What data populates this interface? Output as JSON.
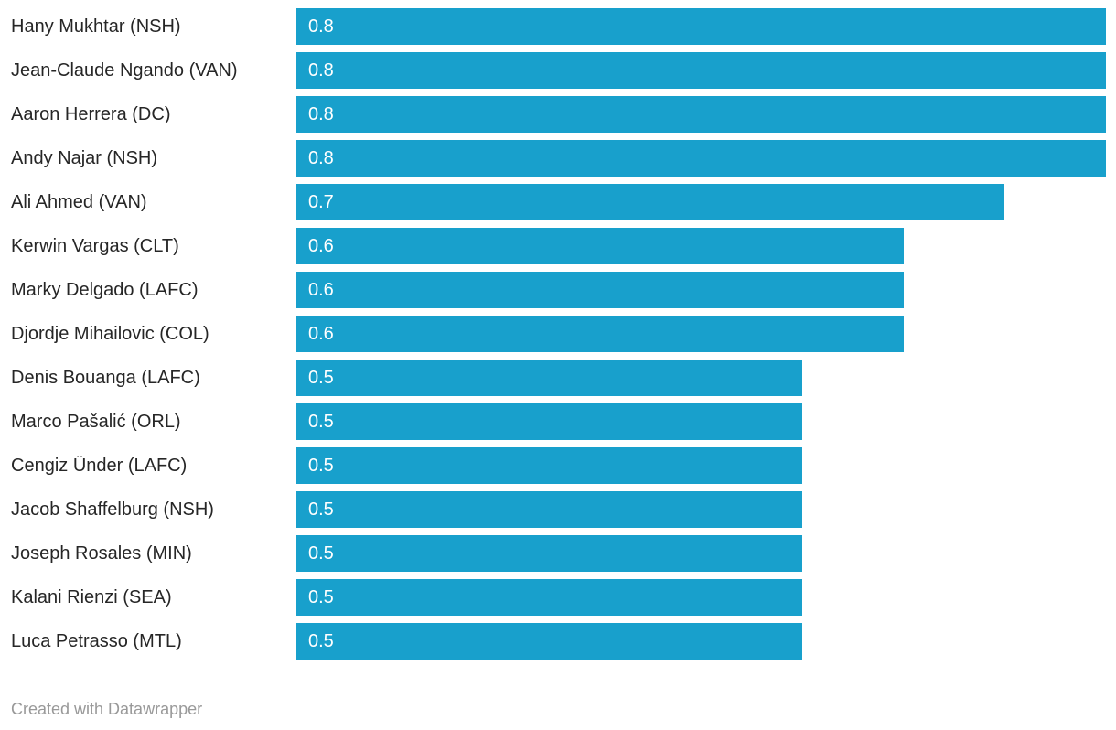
{
  "chart_data": {
    "type": "bar",
    "orientation": "horizontal",
    "title": "",
    "xlabel": "",
    "ylabel": "",
    "xlim": [
      0,
      0.8
    ],
    "grid": false,
    "legend": "none",
    "bar_color": "#18a0cc",
    "value_label_color": "#ffffff",
    "category_label_color": "#262626",
    "categories": [
      "Hany Mukhtar (NSH)",
      "Jean-Claude Ngando (VAN)",
      "Aaron Herrera (DC)",
      "Andy Najar (NSH)",
      "Ali Ahmed (VAN)",
      "Kerwin Vargas (CLT)",
      "Marky Delgado (LAFC)",
      "Djordje Mihailovic (COL)",
      "Denis Bouanga (LAFC)",
      "Marco Pašalić (ORL)",
      "Cengiz Ünder (LAFC)",
      "Jacob Shaffelburg (NSH)",
      "Joseph Rosales (MIN)",
      "Kalani Rienzi (SEA)",
      "Luca Petrasso (MTL)"
    ],
    "values": [
      0.8,
      0.8,
      0.8,
      0.8,
      0.7,
      0.6,
      0.6,
      0.6,
      0.5,
      0.5,
      0.5,
      0.5,
      0.5,
      0.5,
      0.5
    ],
    "value_labels": [
      "0.8",
      "0.8",
      "0.8",
      "0.8",
      "0.7",
      "0.6",
      "0.6",
      "0.6",
      "0.5",
      "0.5",
      "0.5",
      "0.5",
      "0.5",
      "0.5",
      "0.5"
    ]
  },
  "footer": {
    "attribution": "Created with Datawrapper"
  }
}
